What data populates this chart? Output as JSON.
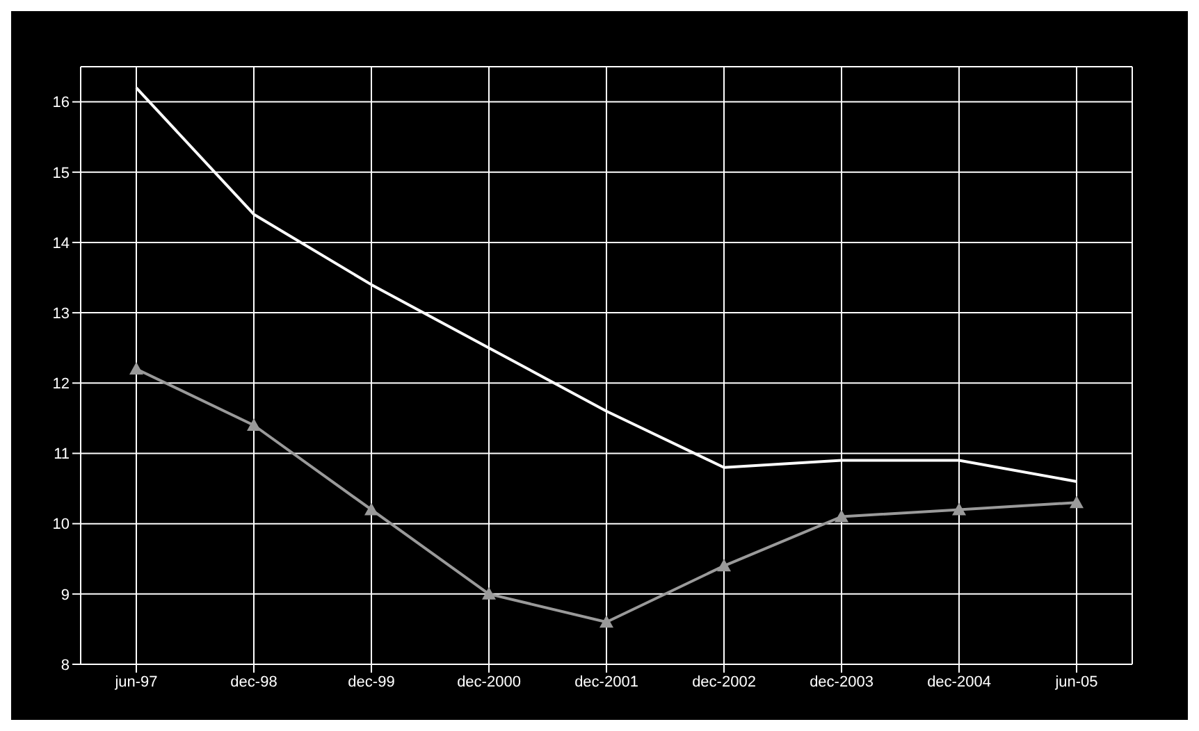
{
  "chart_data": {
    "type": "line",
    "categories": [
      "jun-97",
      "dec-98",
      "dec-99",
      "dec-2000",
      "dec-2001",
      "dec-2002",
      "dec-2003",
      "dec-2004",
      "jun-05"
    ],
    "series": [
      {
        "color": "#ffffff",
        "marker": "none",
        "values": [
          16.2,
          14.4,
          13.4,
          12.5,
          11.6,
          10.8,
          10.9,
          10.9,
          10.6
        ]
      },
      {
        "color": "#9a9a9a",
        "marker": "triangle",
        "values": [
          12.2,
          11.4,
          10.2,
          9.0,
          8.6,
          9.4,
          10.1,
          10.2,
          10.3
        ]
      }
    ],
    "ylim": [
      8,
      16.5
    ],
    "yticks": [
      8,
      9,
      10,
      11,
      12,
      13,
      14,
      15,
      16
    ],
    "grid": true
  }
}
